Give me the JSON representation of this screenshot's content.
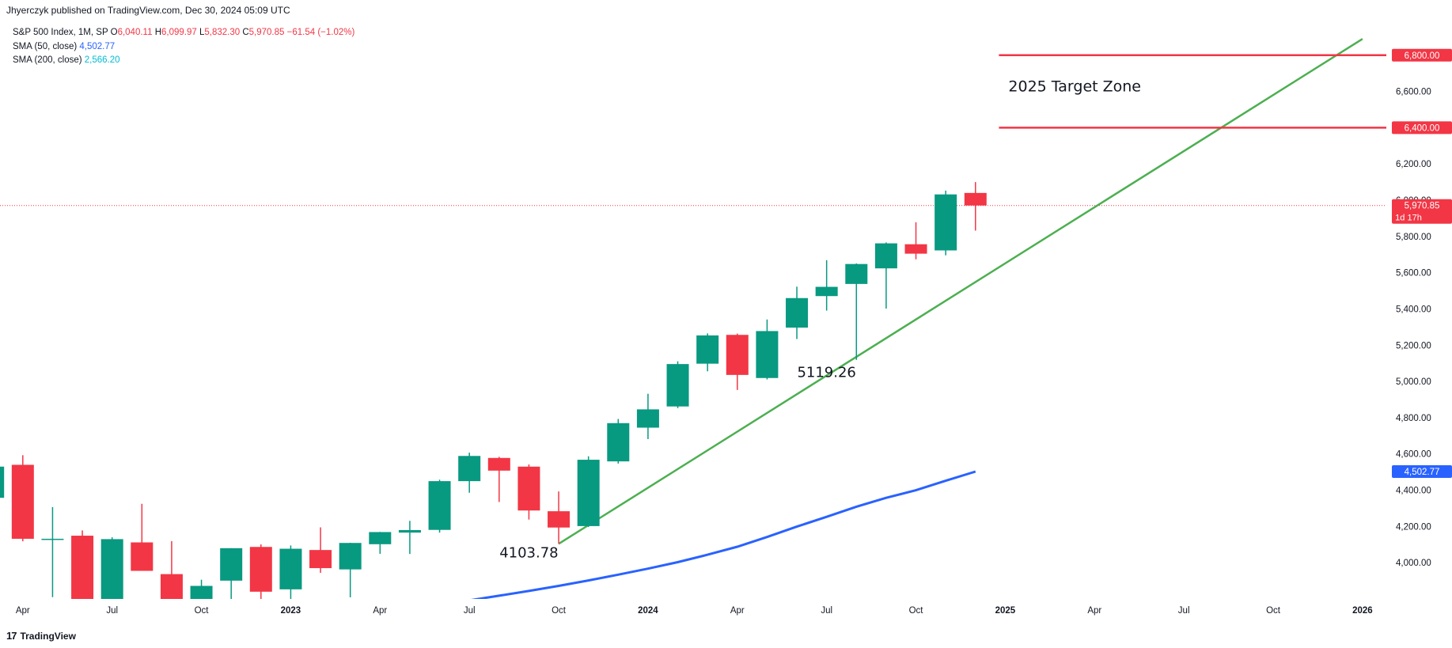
{
  "header": {
    "published": "Jhyerczyk published on TradingView.com, Dec 30, 2024 05:09 UTC"
  },
  "legend": {
    "symbol": "S&P 500 Index, 1M, SP",
    "o_label": "O",
    "o_value": "6,040.11",
    "h_label": "H",
    "h_value": "6,099.97",
    "l_label": "L",
    "l_value": "5,832.30",
    "c_label": "C",
    "c_value": "5,970.85",
    "change": "−61.54 (−1.02%)",
    "sma50_label": "SMA (50, close)",
    "sma50_value": "4,502.77",
    "sma200_label": "SMA (200, close)",
    "sma200_value": "2,566.20"
  },
  "footer": {
    "brand": "TradingView",
    "icon": "tradingview-logo-icon"
  },
  "colors": {
    "up": "#089981",
    "down": "#f23645",
    "sma50": "#2962ff",
    "trend": "#4caf50",
    "target": "#f23645",
    "axis_text": "#131722"
  },
  "chart_data": {
    "type": "candlestick",
    "y_axis": {
      "range": [
        3800,
        6930
      ],
      "ticks": [
        "4,000.00",
        "4,200.00",
        "4,400.00",
        "4,600.00",
        "4,800.00",
        "5,000.00",
        "5,200.00",
        "5,400.00",
        "5,600.00",
        "5,800.00",
        "6,000.00",
        "6,200.00",
        "6,400.00",
        "6,600.00",
        "6,800.00"
      ],
      "tick_values": [
        4000,
        4200,
        4400,
        4600,
        4800,
        5000,
        5200,
        5400,
        5600,
        5800,
        6000,
        6200,
        6400,
        6600,
        6800
      ]
    },
    "x_axis": {
      "labels": [
        "Apr",
        "Jul",
        "Oct",
        "2023",
        "Apr",
        "Jul",
        "Oct",
        "2024",
        "Apr",
        "Jul",
        "Oct",
        "2025",
        "Apr",
        "Jul",
        "Oct",
        "2026"
      ],
      "label_month_index": [
        0,
        3,
        6,
        9,
        12,
        15,
        18,
        21,
        24,
        27,
        30,
        33,
        36,
        39,
        42,
        45
      ],
      "bold": [
        "2023",
        "2024",
        "2025",
        "2026"
      ],
      "month_range": [
        -0.5,
        45.8
      ]
    },
    "candles": [
      {
        "t": "2022-03",
        "o": 4358,
        "h": 4637,
        "l": 4157,
        "c": 4530
      },
      {
        "t": "2022-04",
        "o": 4540,
        "h": 4593,
        "l": 4118,
        "c": 4132
      },
      {
        "t": "2022-05",
        "o": 4131,
        "h": 4307,
        "l": 3810,
        "c": 4132
      },
      {
        "t": "2022-06",
        "o": 4149,
        "h": 4178,
        "l": 3636,
        "c": 3785
      },
      {
        "t": "2022-07",
        "o": 3781,
        "h": 4140,
        "l": 3723,
        "c": 4130
      },
      {
        "t": "2022-08",
        "o": 4112,
        "h": 4325,
        "l": 3955,
        "c": 3955
      },
      {
        "t": "2022-09",
        "o": 3937,
        "h": 4119,
        "l": 3585,
        "c": 3586
      },
      {
        "t": "2022-10",
        "o": 3609,
        "h": 3906,
        "l": 3491,
        "c": 3872
      },
      {
        "t": "2022-11",
        "o": 3901,
        "h": 4080,
        "l": 3699,
        "c": 4080
      },
      {
        "t": "2022-12",
        "o": 4087,
        "h": 4101,
        "l": 3764,
        "c": 3840
      },
      {
        "t": "2023-01",
        "o": 3853,
        "h": 4095,
        "l": 3794,
        "c": 4077
      },
      {
        "t": "2023-02",
        "o": 4070,
        "h": 4195,
        "l": 3944,
        "c": 3970
      },
      {
        "t": "2023-03",
        "o": 3963,
        "h": 4110,
        "l": 3809,
        "c": 4109
      },
      {
        "t": "2023-04",
        "o": 4102,
        "h": 4170,
        "l": 4049,
        "c": 4169
      },
      {
        "t": "2023-05",
        "o": 4166,
        "h": 4231,
        "l": 4048,
        "c": 4180
      },
      {
        "t": "2023-06",
        "o": 4181,
        "h": 4458,
        "l": 4166,
        "c": 4450
      },
      {
        "t": "2023-07",
        "o": 4450,
        "h": 4607,
        "l": 4386,
        "c": 4589
      },
      {
        "t": "2023-08",
        "o": 4578,
        "h": 4584,
        "l": 4335,
        "c": 4508
      },
      {
        "t": "2023-09",
        "o": 4530,
        "h": 4542,
        "l": 4238,
        "c": 4288
      },
      {
        "t": "2023-10",
        "o": 4284,
        "h": 4393,
        "l": 4104,
        "c": 4194
      },
      {
        "t": "2023-11",
        "o": 4202,
        "h": 4587,
        "l": 4197,
        "c": 4568
      },
      {
        "t": "2023-12",
        "o": 4559,
        "h": 4793,
        "l": 4547,
        "c": 4770
      },
      {
        "t": "2024-01",
        "o": 4745,
        "h": 4932,
        "l": 4682,
        "c": 4846
      },
      {
        "t": "2024-02",
        "o": 4862,
        "h": 5111,
        "l": 4853,
        "c": 5096
      },
      {
        "t": "2024-03",
        "o": 5098,
        "h": 5265,
        "l": 5056,
        "c": 5254
      },
      {
        "t": "2024-04",
        "o": 5257,
        "h": 5264,
        "l": 4953,
        "c": 5036
      },
      {
        "t": "2024-05",
        "o": 5019,
        "h": 5342,
        "l": 5011,
        "c": 5278
      },
      {
        "t": "2024-06",
        "o": 5297,
        "h": 5523,
        "l": 5234,
        "c": 5460
      },
      {
        "t": "2024-07",
        "o": 5471,
        "h": 5669,
        "l": 5391,
        "c": 5522
      },
      {
        "t": "2024-08",
        "o": 5538,
        "h": 5651,
        "l": 5119.26,
        "c": 5648
      },
      {
        "t": "2024-09",
        "o": 5624,
        "h": 5767,
        "l": 5402,
        "c": 5762
      },
      {
        "t": "2024-10",
        "o": 5757,
        "h": 5878,
        "l": 5674,
        "c": 5705
      },
      {
        "t": "2024-11",
        "o": 5723,
        "h": 6053,
        "l": 5696,
        "c": 6032
      },
      {
        "t": "2024-12",
        "o": 6040.11,
        "h": 6099.97,
        "l": 5832.3,
        "c": 5970.85
      }
    ],
    "series": [
      {
        "name": "SMA (50, close)",
        "color": "#2962ff",
        "points": [
          {
            "t": "2023-07",
            "v": 3792
          },
          {
            "t": "2023-08",
            "v": 3818
          },
          {
            "t": "2023-09",
            "v": 3844
          },
          {
            "t": "2023-10",
            "v": 3872
          },
          {
            "t": "2023-11",
            "v": 3902
          },
          {
            "t": "2023-12",
            "v": 3934
          },
          {
            "t": "2024-01",
            "v": 3967
          },
          {
            "t": "2024-02",
            "v": 4003
          },
          {
            "t": "2024-03",
            "v": 4044
          },
          {
            "t": "2024-04",
            "v": 4088
          },
          {
            "t": "2024-05",
            "v": 4142
          },
          {
            "t": "2024-06",
            "v": 4199
          },
          {
            "t": "2024-07",
            "v": 4253
          },
          {
            "t": "2024-08",
            "v": 4309
          },
          {
            "t": "2024-09",
            "v": 4358
          },
          {
            "t": "2024-10",
            "v": 4400
          },
          {
            "t": "2024-11",
            "v": 4452
          },
          {
            "t": "2024-12",
            "v": 4502.77
          }
        ]
      }
    ],
    "trendline": {
      "color": "#4caf50",
      "from": {
        "t": "2023-10",
        "v": 4104
      },
      "to": {
        "t": "2026-01",
        "v": 6890
      }
    },
    "levels": [
      {
        "value": 6800,
        "label": "6,800.00",
        "from": "2025-01",
        "color": "#f23645"
      },
      {
        "value": 6400,
        "label": "6,400.00",
        "from": "2025-01",
        "color": "#f23645"
      }
    ],
    "current_price": {
      "value": 5970.85,
      "label": "5,970.85",
      "countdown": "1d 17h",
      "color": "#f23645"
    },
    "sma_tag": {
      "value": 4502.77,
      "label": "4,502.77",
      "color": "#2962ff"
    },
    "annotations": [
      {
        "text": "2025 Target Zone",
        "t": "2025-01",
        "v": 6600
      },
      {
        "text": "4103.78",
        "t": "2023-09",
        "v": 4030
      },
      {
        "text": "5119.26",
        "t": "2024-07",
        "v": 5025
      }
    ]
  }
}
